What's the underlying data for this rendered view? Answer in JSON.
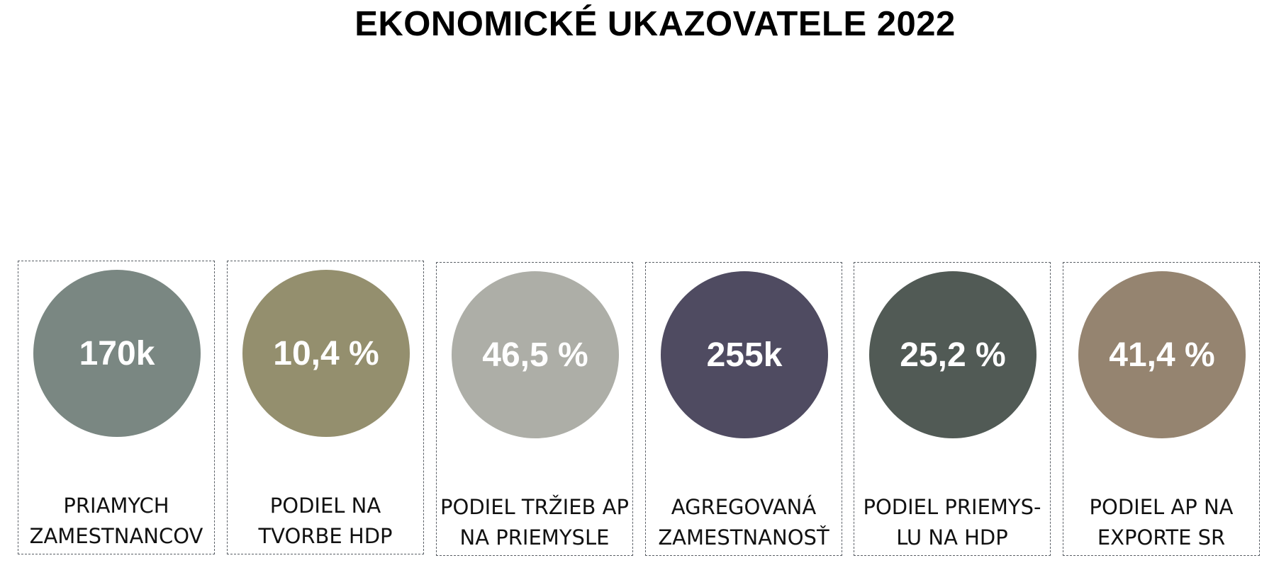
{
  "title": "EKONOMICKÉ UKAZOVATELE 2022",
  "indicators": [
    {
      "value": "170k",
      "label": "PRIAMYCH\nZAMESTNANCOV",
      "color": "#7a8782"
    },
    {
      "value": "10,4 %",
      "label": "PODIEL NA\nTVORBE HDP",
      "color": "#948f6e"
    },
    {
      "value": "46,5 %",
      "label": "PODIEL TRŽIEB AP\nNA PRIEMYSLE",
      "color": "#adaea7"
    },
    {
      "value": "255k",
      "label": "AGREGOVANÁ\nZAMESTNANOSŤ",
      "color": "#4f4b61"
    },
    {
      "value": "25,2 %",
      "label": "PODIEL PRIEMYS-\nLU NA HDP",
      "color": "#515a55"
    },
    {
      "value": "41,4 %",
      "label": "PODIEL AP NA\nEXPORTE SR",
      "color": "#958470"
    }
  ]
}
